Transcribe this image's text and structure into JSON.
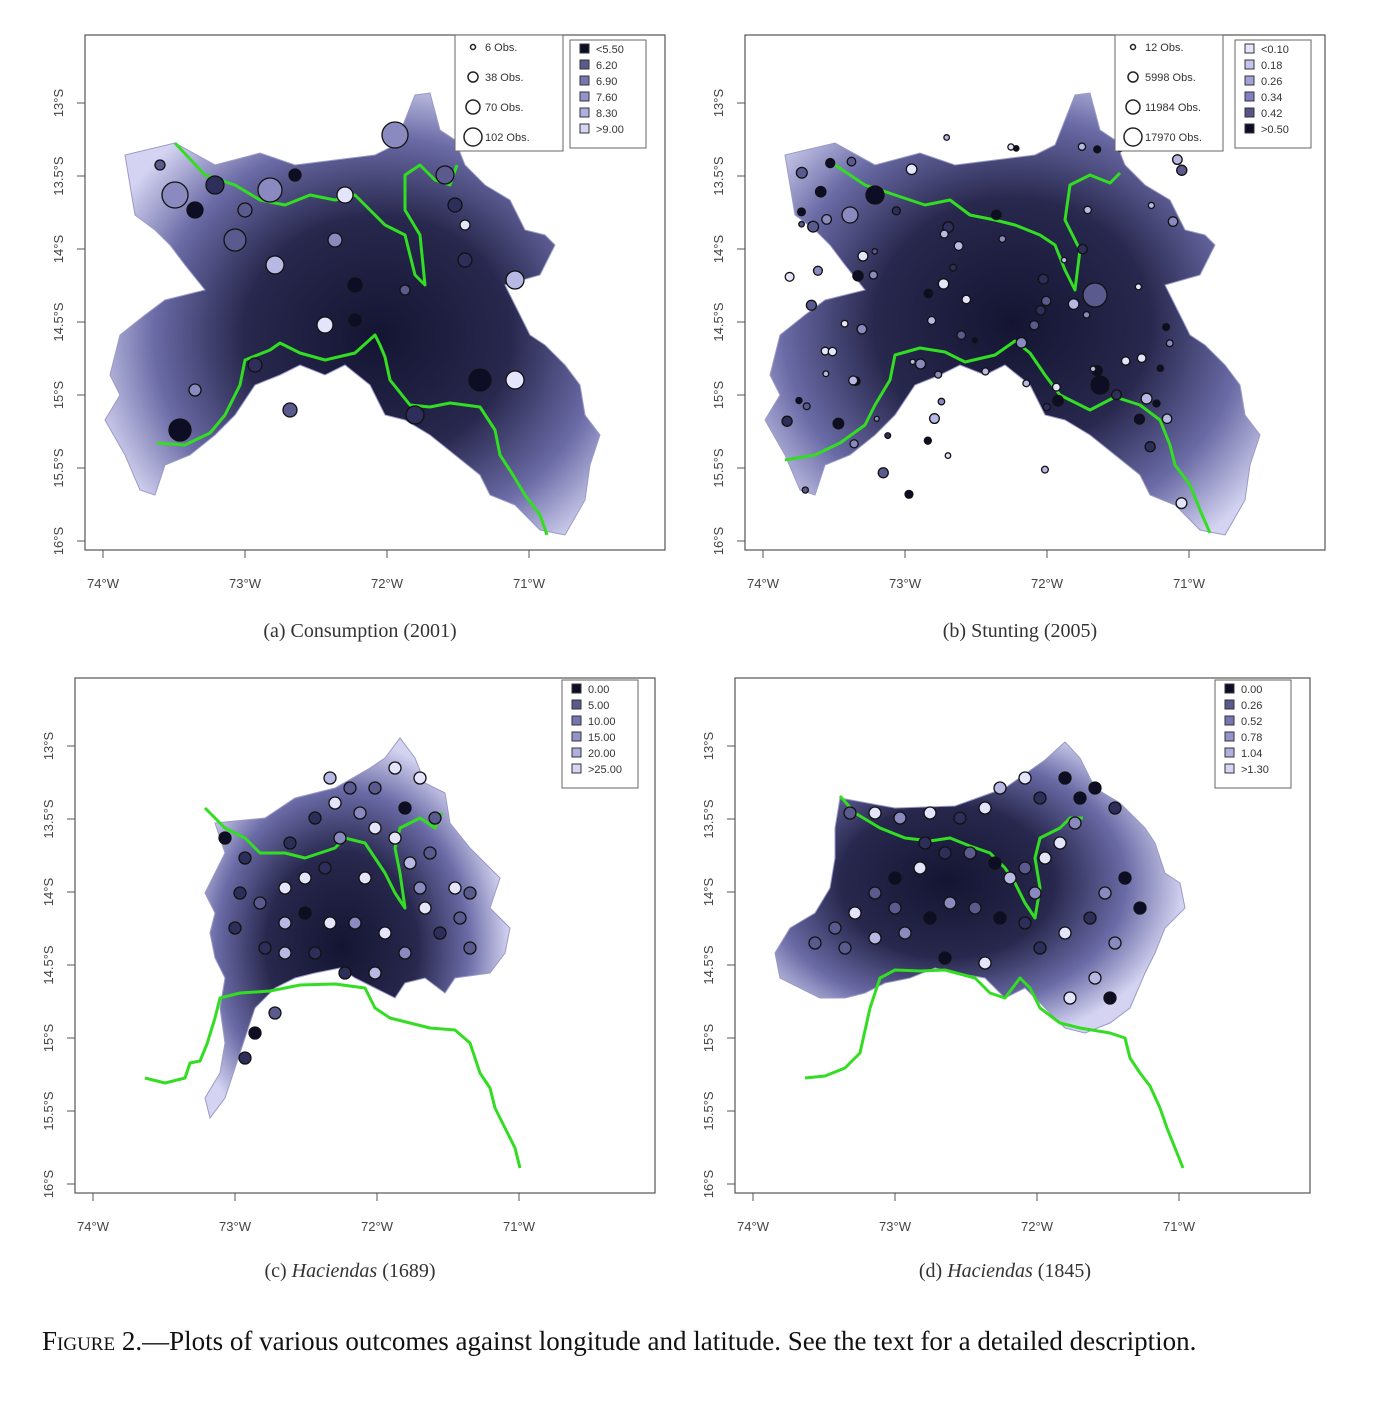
{
  "panels": [
    {
      "id": "a",
      "caption_prefix": "(a) ",
      "caption_main": "Consumption",
      "caption_suffix": " (2001)",
      "italic": false,
      "x_ticks": [
        "74°W",
        "73°W",
        "72°W",
        "71°W"
      ],
      "y_ticks": [
        "13°S",
        "13.5°S",
        "14°S",
        "14.5°S",
        "15°S",
        "15.5°S",
        "16°S"
      ],
      "size_legend": [
        "6 Obs.",
        "38 Obs.",
        "70 Obs.",
        "102 Obs."
      ],
      "color_legend": [
        "<5.50",
        "6.20",
        "6.90",
        "7.60",
        "8.30",
        ">9.00"
      ],
      "color_legend_colors": [
        "#0d0d26",
        "#5a5a8e",
        "#7676b0",
        "#9494cc",
        "#b0b0e0",
        "#d6d6f4"
      ]
    },
    {
      "id": "b",
      "caption_prefix": "(b) ",
      "caption_main": "Stunting",
      "caption_suffix": " (2005)",
      "italic": false,
      "x_ticks": [
        "74°W",
        "73°W",
        "72°W",
        "71°W"
      ],
      "y_ticks": [
        "13°S",
        "13.5°S",
        "14°S",
        "14.5°S",
        "15°S",
        "15.5°S",
        "16°S"
      ],
      "size_legend": [
        "12 Obs.",
        "5998 Obs.",
        "11984 Obs.",
        "17970 Obs."
      ],
      "color_legend": [
        "<0.10",
        "0.18",
        "0.26",
        "0.34",
        "0.42",
        ">0.50"
      ],
      "color_legend_colors": [
        "#e4e4fa",
        "#c4c4ec",
        "#a2a2da",
        "#8080c0",
        "#55558a",
        "#0d0d26"
      ]
    },
    {
      "id": "c",
      "caption_prefix": "(c) ",
      "caption_main": "Haciendas",
      "caption_suffix": " (1689)",
      "italic": true,
      "x_ticks": [
        "74°W",
        "73°W",
        "72°W",
        "71°W"
      ],
      "y_ticks": [
        "13°S",
        "13.5°S",
        "14°S",
        "14.5°S",
        "15°S",
        "15.5°S",
        "16°S"
      ],
      "size_legend": [],
      "color_legend": [
        "0.00",
        "5.00",
        "10.00",
        "15.00",
        "20.00",
        ">25.00"
      ],
      "color_legend_colors": [
        "#0d0d26",
        "#5a5a8e",
        "#7676b0",
        "#9494cc",
        "#b0b0e0",
        "#d6d6f4"
      ]
    },
    {
      "id": "d",
      "caption_prefix": "(d) ",
      "caption_main": "Haciendas",
      "caption_suffix": " (1845)",
      "italic": true,
      "x_ticks": [
        "74°W",
        "73°W",
        "72°W",
        "71°W"
      ],
      "y_ticks": [
        "13°S",
        "13.5°S",
        "14°S",
        "14.5°S",
        "15°S",
        "15.5°S",
        "16°S"
      ],
      "size_legend": [],
      "color_legend": [
        "0.00",
        "0.26",
        "0.52",
        "0.78",
        "1.04",
        ">1.30"
      ],
      "color_legend_colors": [
        "#0d0d26",
        "#5a5a8e",
        "#7676b0",
        "#9494cc",
        "#b0b0e0",
        "#d6d6f4"
      ]
    }
  ],
  "figure_caption": {
    "label": "Figure 2",
    "text": ".—Plots of various outcomes against longitude and latitude. See the text for a detailed description."
  },
  "colors": {
    "boundary": "#33dd22",
    "dark": "#141432",
    "light": "#d4d4f2"
  }
}
